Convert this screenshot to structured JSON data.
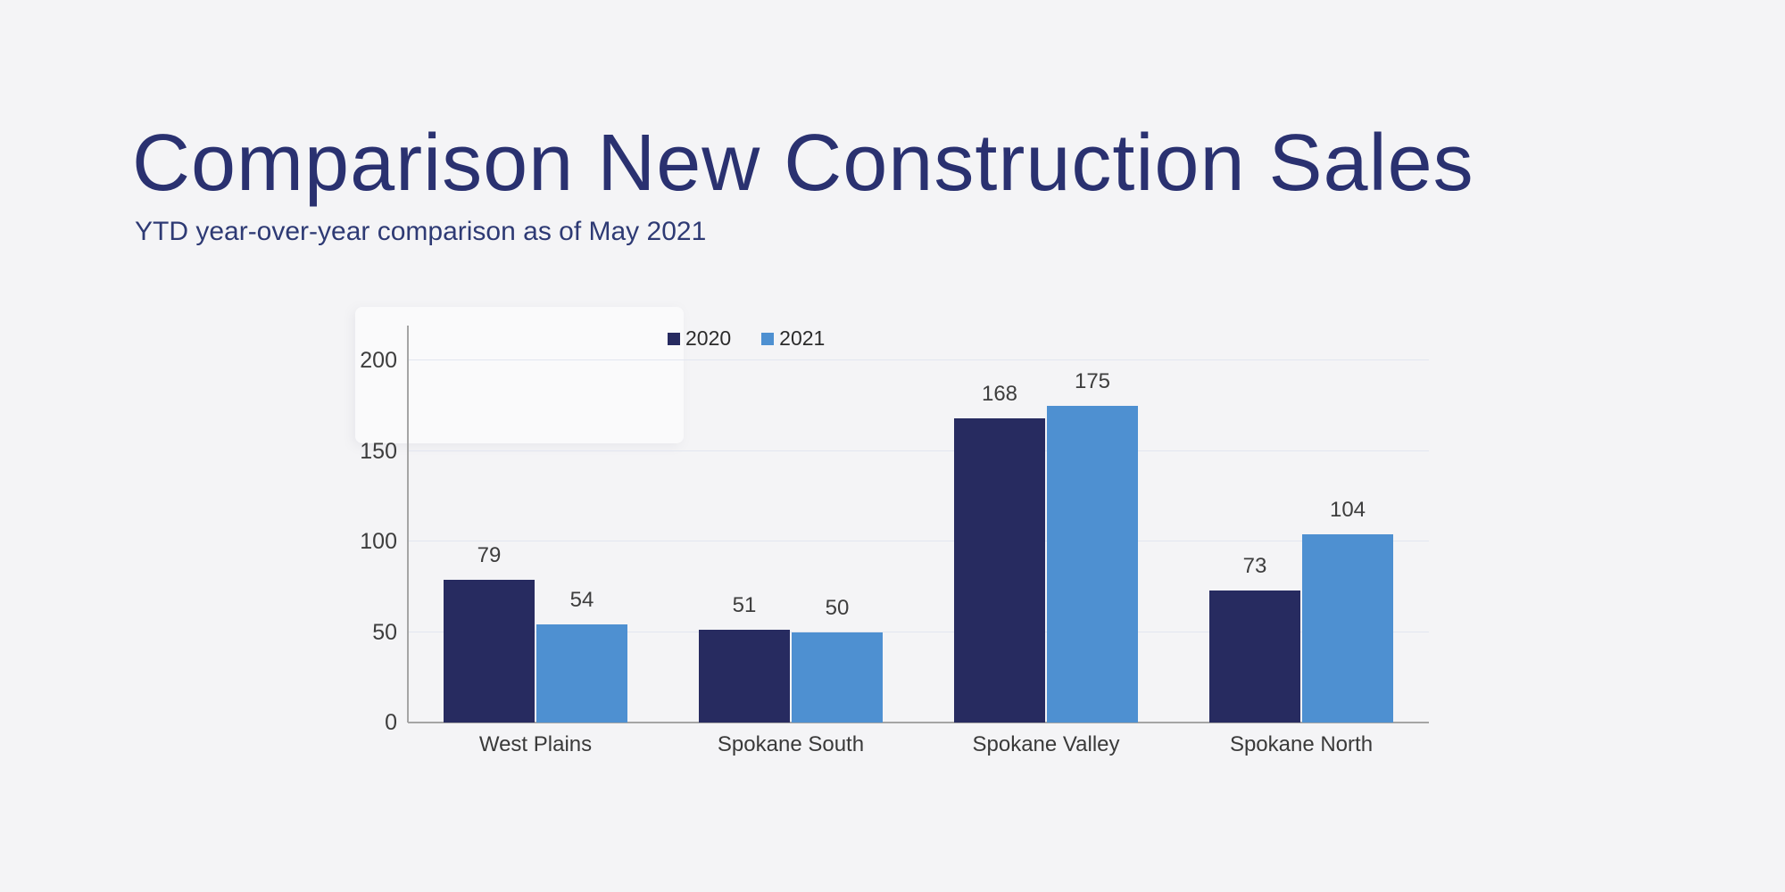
{
  "page": {
    "background_color": "#f4f4f6"
  },
  "header": {
    "title": "Comparison New Construction Sales",
    "subtitle": "YTD year-over-year comparison as of May 2021",
    "title_color": "#2a3170",
    "subtitle_color": "#2e3a74"
  },
  "chart_data": {
    "type": "bar",
    "title": "Comparison New Construction Sales",
    "subtitle": "YTD year-over-year comparison as of May 2021",
    "categories": [
      "West Plains",
      "Spokane South",
      "Spokane Valley",
      "Spokane North"
    ],
    "series": [
      {
        "name": "2020",
        "color": "#272b60",
        "values": [
          79,
          51,
          168,
          73
        ]
      },
      {
        "name": "2021",
        "color": "#4e90d1",
        "values": [
          54,
          50,
          175,
          104
        ]
      }
    ],
    "value_labels": [
      [
        "79",
        "51",
        "168",
        "73"
      ],
      [
        "54",
        "50",
        "175",
        "104"
      ]
    ],
    "ylim": [
      0,
      200
    ],
    "yticks": [
      "0",
      "50",
      "100",
      "150",
      "200"
    ],
    "grid": "horizontal",
    "legend_position": "top",
    "axis_color": "#a5a5a5",
    "grid_color": "#e2e6f0",
    "tick_label_color": "#3d3d3d",
    "category_label_color": "#3a3a3a",
    "value_label_color": "#3d3d3d"
  }
}
